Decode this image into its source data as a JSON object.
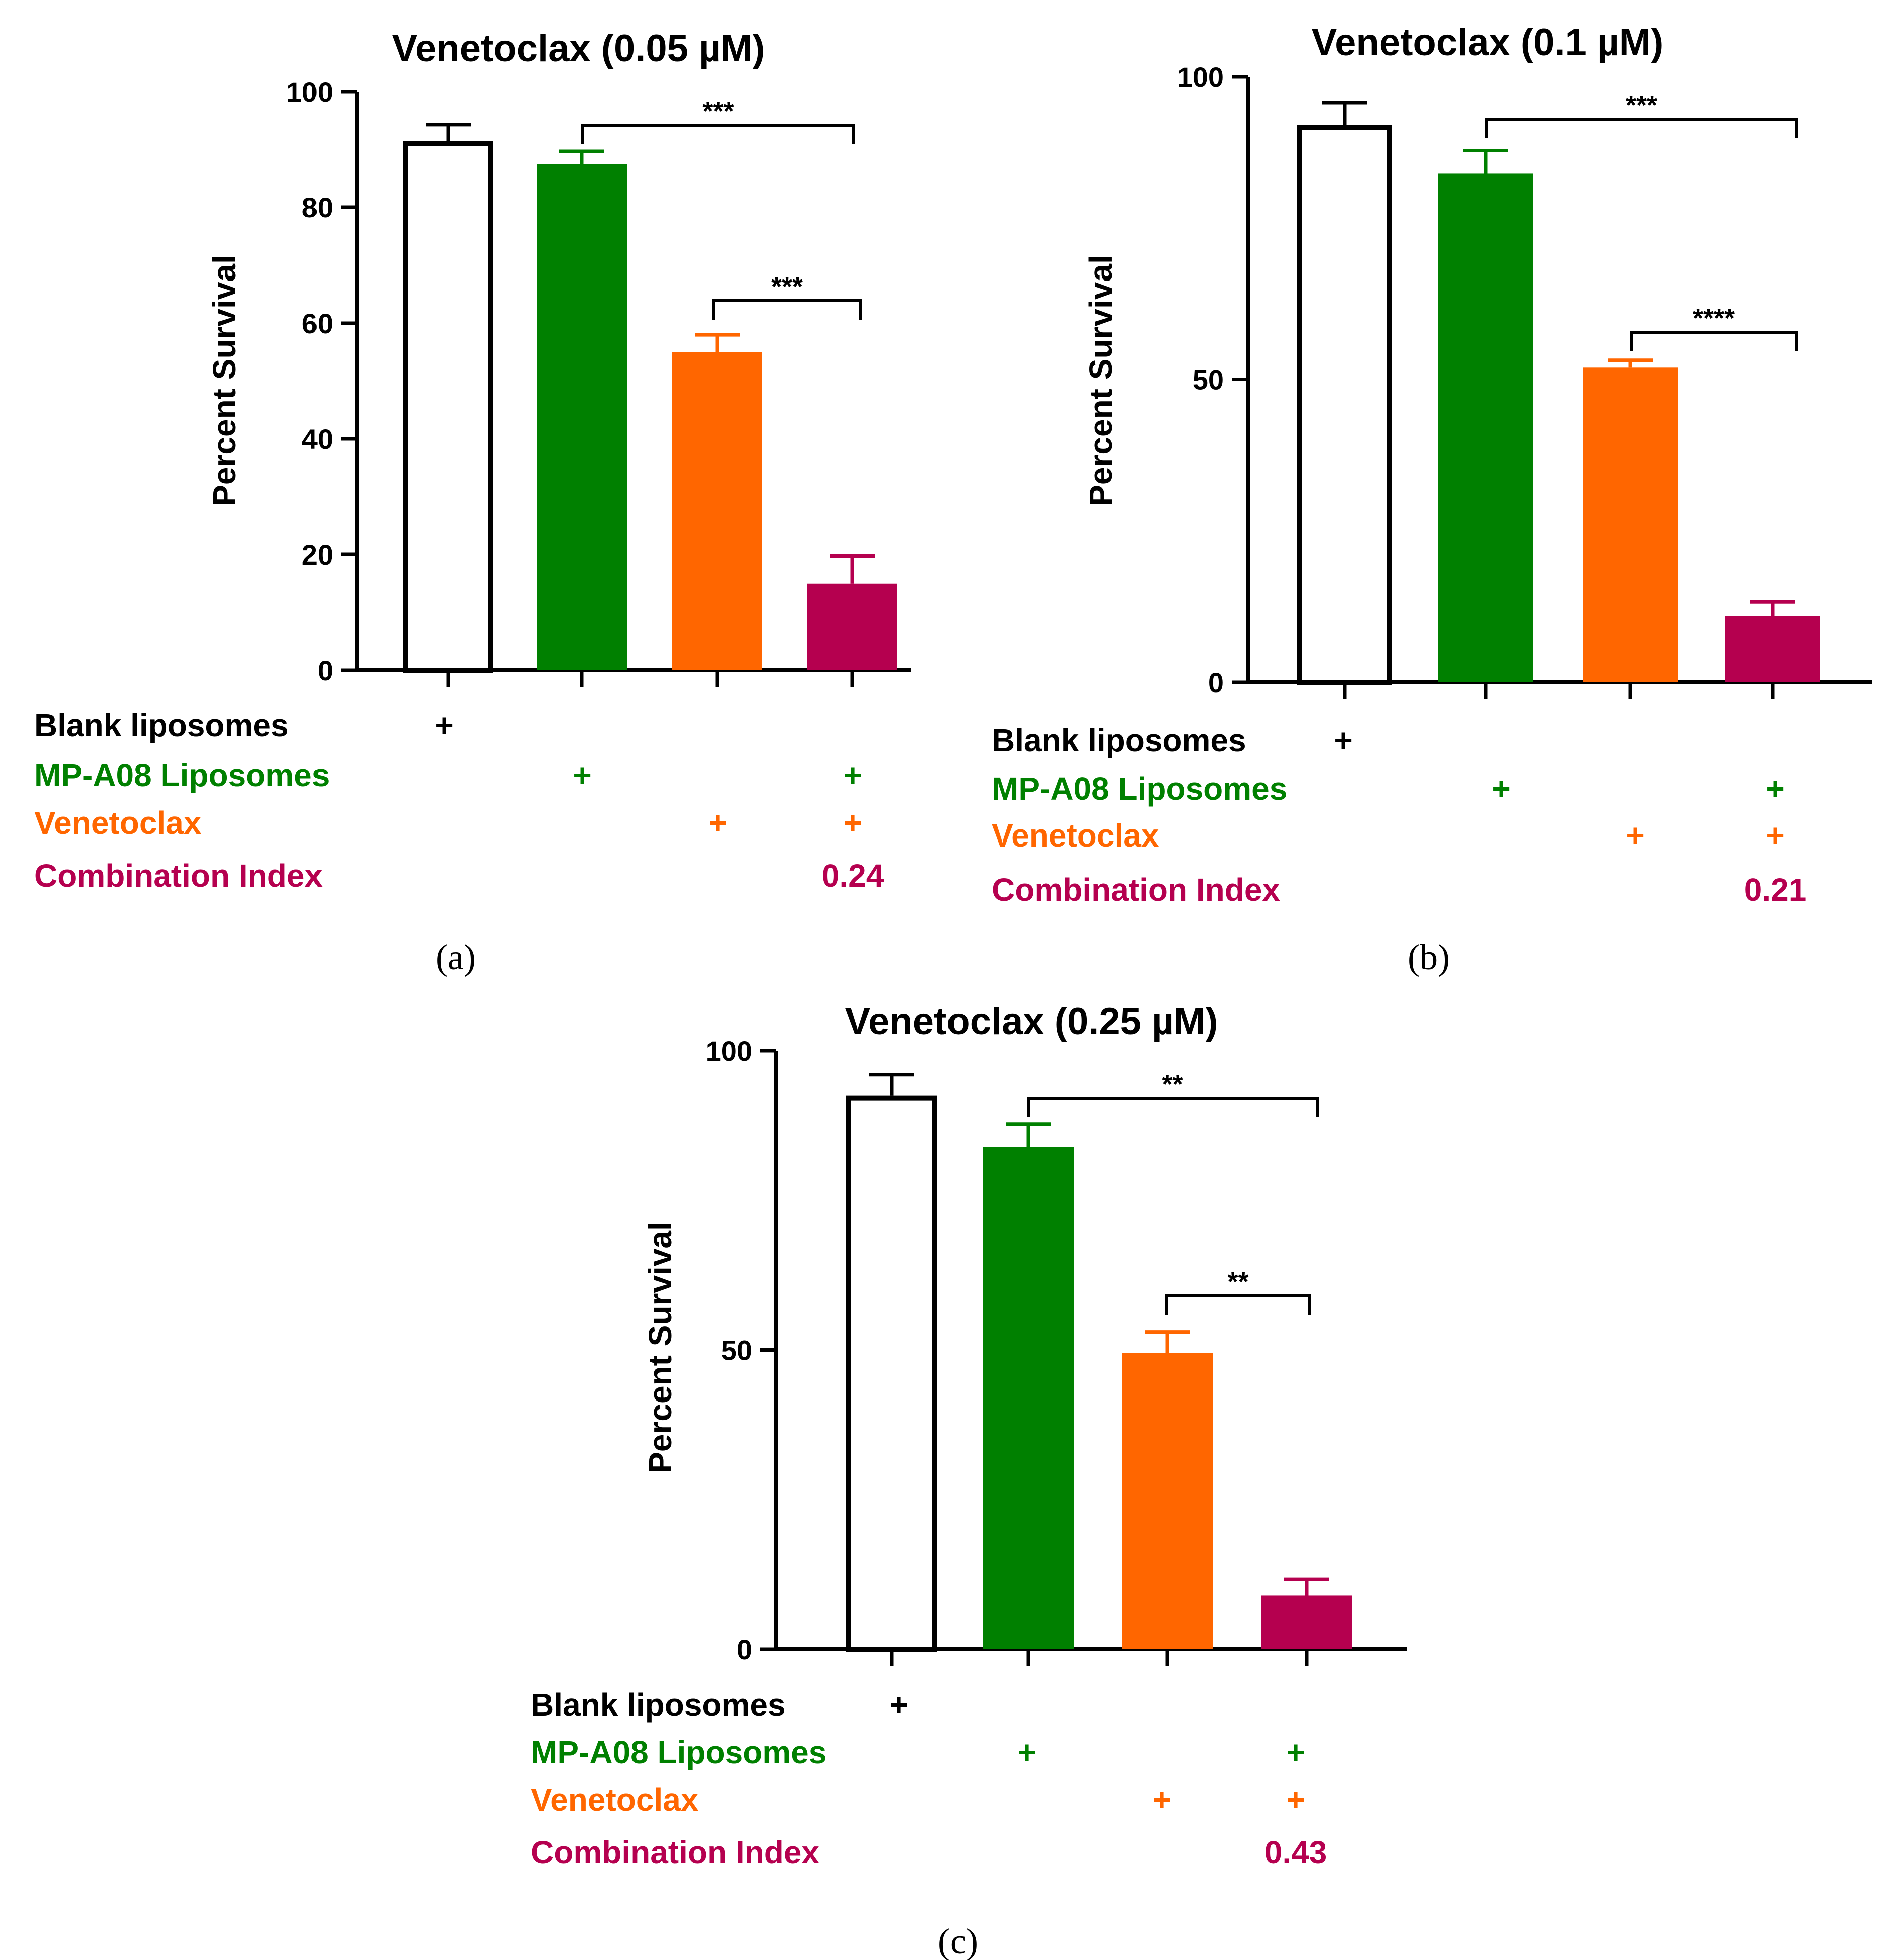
{
  "figure": {
    "colors": {
      "blank": "#ffffff",
      "mp_a08": "#008000",
      "venetoclax": "#ff6600",
      "combination": "#b5004f",
      "axis": "#000000"
    },
    "row_labels": {
      "blank": "Blank liposomes",
      "mp_a08": "MP-A08 Liposomes",
      "venetoclax": "Venetoclax",
      "ci": "Combination Index"
    },
    "plus_symbol": "+",
    "marker_matrix": {
      "blank": [
        true,
        false,
        false,
        false
      ],
      "mp_a08": [
        false,
        true,
        false,
        true
      ],
      "venetoclax": [
        false,
        false,
        true,
        true
      ]
    }
  },
  "chart_data": [
    {
      "id": "a",
      "panel_label": "(a)",
      "type": "bar",
      "title": "Venetoclax   (0.05 µM)",
      "ylabel": "Percent Survival",
      "ylim": [
        0,
        100
      ],
      "yticks": [
        0,
        20,
        40,
        60,
        80,
        100
      ],
      "categories": [
        "Blank liposomes",
        "MP-A08 Liposomes",
        "Venetoclax",
        "MP-A08 Liposomes + Venetoclax"
      ],
      "values": [
        91.5,
        87.5,
        55,
        15
      ],
      "errors": [
        2.8,
        2.2,
        3,
        4.7
      ],
      "combination_index": "0.24",
      "significance": [
        {
          "from": 1,
          "to": 3,
          "label": "***"
        },
        {
          "from": 2,
          "to": 3,
          "label": "***"
        }
      ]
    },
    {
      "id": "b",
      "panel_label": "(b)",
      "type": "bar",
      "title": "Venetoclax   (0.1 µM)",
      "ylabel": "Percent Survival",
      "ylim": [
        0,
        100
      ],
      "yticks": [
        0,
        50,
        100
      ],
      "categories": [
        "Blank liposomes",
        "MP-A08 Liposomes",
        "Venetoclax",
        "MP-A08 Liposomes + Venetoclax"
      ],
      "values": [
        92,
        84,
        52,
        11
      ],
      "errors": [
        3.7,
        3.8,
        1.2,
        2.3
      ],
      "combination_index": "0.21",
      "significance": [
        {
          "from": 1,
          "to": 3,
          "label": "***"
        },
        {
          "from": 2,
          "to": 3,
          "label": "****"
        }
      ]
    },
    {
      "id": "c",
      "panel_label": "(c)",
      "type": "bar",
      "title": "Venetoclax   (0.25 µM)",
      "ylabel": "Percent Survival",
      "ylim": [
        0,
        100
      ],
      "yticks": [
        0,
        50,
        100
      ],
      "categories": [
        "Blank liposomes",
        "MP-A08 Liposomes",
        "Venetoclax",
        "MP-A08 Liposomes + Venetoclax"
      ],
      "values": [
        92.5,
        84,
        49.5,
        9
      ],
      "errors": [
        3.5,
        3.8,
        3.5,
        2.7
      ],
      "combination_index": "0.43",
      "significance": [
        {
          "from": 1,
          "to": 3,
          "label": "**"
        },
        {
          "from": 2,
          "to": 3,
          "label": "**"
        }
      ]
    }
  ]
}
